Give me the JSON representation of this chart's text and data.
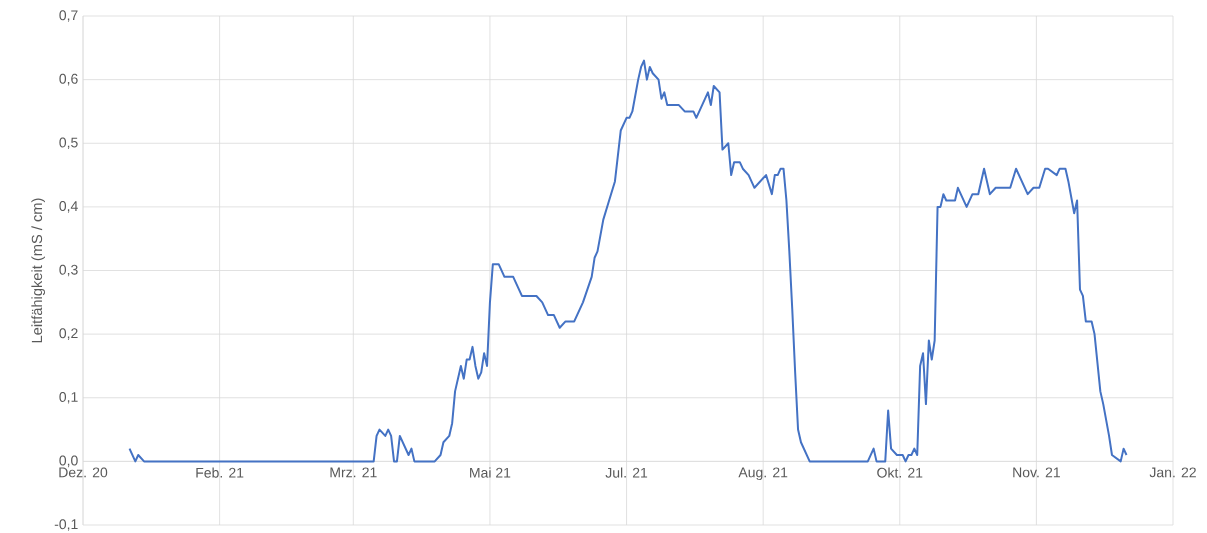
{
  "chart_data": {
    "type": "line",
    "ylabel": "Leitfähigkeit (mS / cm)",
    "color": "#4472c4",
    "grid": true,
    "xlim": [
      "2020-12-28",
      "2022-01-07"
    ],
    "xticks": [
      {
        "value": "2020-12-28",
        "label": "Dez. 20"
      },
      {
        "value": "2021-02-13",
        "label": "Feb. 21"
      },
      {
        "value": "2021-03-31",
        "label": "Mrz. 21"
      },
      {
        "value": "2021-05-17",
        "label": "Mai  21"
      },
      {
        "value": "2021-07-03",
        "label": "Jul. 21"
      },
      {
        "value": "2021-08-19",
        "label": "Aug. 21"
      },
      {
        "value": "2021-10-05",
        "label": "Okt. 21"
      },
      {
        "value": "2021-11-21",
        "label": "Nov. 21"
      },
      {
        "value": "2022-01-07",
        "label": "Jan. 22"
      }
    ],
    "ylim": [
      -0.1,
      0.7
    ],
    "yticks": [
      {
        "value": -0.1,
        "label": "-0,1"
      },
      {
        "value": 0,
        "label": "0,0"
      },
      {
        "value": 0.1,
        "label": "0,1"
      },
      {
        "value": 0.2,
        "label": "0,2"
      },
      {
        "value": 0.3,
        "label": "0,3"
      },
      {
        "value": 0.4,
        "label": "0,4"
      },
      {
        "value": 0.5,
        "label": "0,5"
      },
      {
        "value": 0.6,
        "label": "0,6"
      },
      {
        "value": 0.7,
        "label": "0,7"
      }
    ],
    "x": [
      "2021-01-13",
      "2021-01-14",
      "2021-01-15",
      "2021-01-16",
      "2021-01-18",
      "2021-04-07",
      "2021-04-08",
      "2021-04-09",
      "2021-04-11",
      "2021-04-12",
      "2021-04-13",
      "2021-04-14",
      "2021-04-15",
      "2021-04-16",
      "2021-04-17",
      "2021-04-18",
      "2021-04-19",
      "2021-04-20",
      "2021-04-21",
      "2021-04-23",
      "2021-04-24",
      "2021-04-26",
      "2021-04-28",
      "2021-04-30",
      "2021-05-01",
      "2021-05-03",
      "2021-05-04",
      "2021-05-05",
      "2021-05-07",
      "2021-05-08",
      "2021-05-09",
      "2021-05-10",
      "2021-05-11",
      "2021-05-12",
      "2021-05-13",
      "2021-05-14",
      "2021-05-15",
      "2021-05-16",
      "2021-05-17",
      "2021-05-18",
      "2021-05-20",
      "2021-05-21",
      "2021-05-22",
      "2021-05-25",
      "2021-05-27",
      "2021-05-28",
      "2021-05-30",
      "2021-06-01",
      "2021-06-02",
      "2021-06-04",
      "2021-06-06",
      "2021-06-08",
      "2021-06-10",
      "2021-06-12",
      "2021-06-15",
      "2021-06-16",
      "2021-06-18",
      "2021-06-21",
      "2021-06-22",
      "2021-06-23",
      "2021-06-25",
      "2021-06-27",
      "2021-06-29",
      "2021-06-30",
      "2021-07-01",
      "2021-07-03",
      "2021-07-04",
      "2021-07-05",
      "2021-07-07",
      "2021-07-08",
      "2021-07-09",
      "2021-07-10",
      "2021-07-11",
      "2021-07-12",
      "2021-07-14",
      "2021-07-15",
      "2021-07-16",
      "2021-07-17",
      "2021-07-19",
      "2021-07-20",
      "2021-07-21",
      "2021-07-23",
      "2021-07-24",
      "2021-07-26",
      "2021-07-27",
      "2021-07-28",
      "2021-07-30",
      "2021-07-31",
      "2021-08-01",
      "2021-08-02",
      "2021-08-04",
      "2021-08-05",
      "2021-08-07",
      "2021-08-08",
      "2021-08-09",
      "2021-08-11",
      "2021-08-12",
      "2021-08-14",
      "2021-08-16",
      "2021-08-18",
      "2021-08-20",
      "2021-08-22",
      "2021-08-23",
      "2021-08-24",
      "2021-08-25",
      "2021-08-26",
      "2021-08-27",
      "2021-08-28",
      "2021-08-29",
      "2021-08-30",
      "2021-08-31",
      "2021-09-01",
      "2021-09-03",
      "2021-09-04",
      "2021-09-13",
      "2021-09-24",
      "2021-09-26",
      "2021-09-27",
      "2021-09-30",
      "2021-10-01",
      "2021-10-02",
      "2021-10-04",
      "2021-10-06",
      "2021-10-07",
      "2021-10-08",
      "2021-10-09",
      "2021-10-10",
      "2021-10-11",
      "2021-10-12",
      "2021-10-13",
      "2021-10-14",
      "2021-10-15",
      "2021-10-16",
      "2021-10-17",
      "2021-10-18",
      "2021-10-19",
      "2021-10-20",
      "2021-10-21",
      "2021-10-24",
      "2021-10-25",
      "2021-10-28",
      "2021-10-30",
      "2021-11-01",
      "2021-11-03",
      "2021-11-05",
      "2021-11-07",
      "2021-11-12",
      "2021-11-14",
      "2021-11-16",
      "2021-11-18",
      "2021-11-20",
      "2021-11-22",
      "2021-11-24",
      "2021-11-25",
      "2021-11-28",
      "2021-11-29",
      "2021-12-01",
      "2021-12-02",
      "2021-12-04",
      "2021-12-05",
      "2021-12-06",
      "2021-12-07",
      "2021-12-08",
      "2021-12-10",
      "2021-12-11",
      "2021-12-13",
      "2021-12-14",
      "2021-12-16",
      "2021-12-17",
      "2021-12-20",
      "2021-12-21",
      "2021-12-22"
    ],
    "values": [
      0.02,
      0.01,
      0,
      0.01,
      0,
      0,
      0.04,
      0.05,
      0.04,
      0.05,
      0.04,
      0,
      0,
      0.04,
      0.03,
      0.02,
      0.01,
      0.02,
      0,
      0,
      0,
      0,
      0,
      0.01,
      0.03,
      0.04,
      0.06,
      0.11,
      0.15,
      0.13,
      0.16,
      0.16,
      0.18,
      0.15,
      0.13,
      0.14,
      0.17,
      0.15,
      0.25,
      0.31,
      0.31,
      0.3,
      0.29,
      0.29,
      0.27,
      0.26,
      0.26,
      0.26,
      0.26,
      0.25,
      0.23,
      0.23,
      0.21,
      0.22,
      0.22,
      0.23,
      0.25,
      0.29,
      0.32,
      0.33,
      0.38,
      0.41,
      0.44,
      0.48,
      0.52,
      0.54,
      0.54,
      0.55,
      0.6,
      0.62,
      0.63,
      0.6,
      0.62,
      0.61,
      0.6,
      0.57,
      0.58,
      0.56,
      0.56,
      0.56,
      0.56,
      0.55,
      0.55,
      0.55,
      0.54,
      0.55,
      0.57,
      0.58,
      0.56,
      0.59,
      0.58,
      0.49,
      0.5,
      0.45,
      0.47,
      0.47,
      0.46,
      0.45,
      0.43,
      0.44,
      0.45,
      0.42,
      0.45,
      0.45,
      0.46,
      0.46,
      0.41,
      0.33,
      0.24,
      0.14,
      0.05,
      0.03,
      0.01,
      0,
      0,
      0,
      0.02,
      0,
      0,
      0.08,
      0.02,
      0.01,
      0.01,
      0,
      0.01,
      0.01,
      0.02,
      0.01,
      0.15,
      0.17,
      0.09,
      0.19,
      0.16,
      0.19,
      0.4,
      0.4,
      0.42,
      0.41,
      0.41,
      0.43,
      0.4,
      0.42,
      0.42,
      0.46,
      0.42,
      0.43,
      0.43,
      0.46,
      0.44,
      0.42,
      0.43,
      0.43,
      0.46,
      0.46,
      0.45,
      0.46,
      0.46,
      0.44,
      0.39,
      0.41,
      0.27,
      0.26,
      0.22,
      0.22,
      0.2,
      0.11,
      0.09,
      0.04,
      0.01,
      0,
      0.02,
      0.01
    ]
  }
}
